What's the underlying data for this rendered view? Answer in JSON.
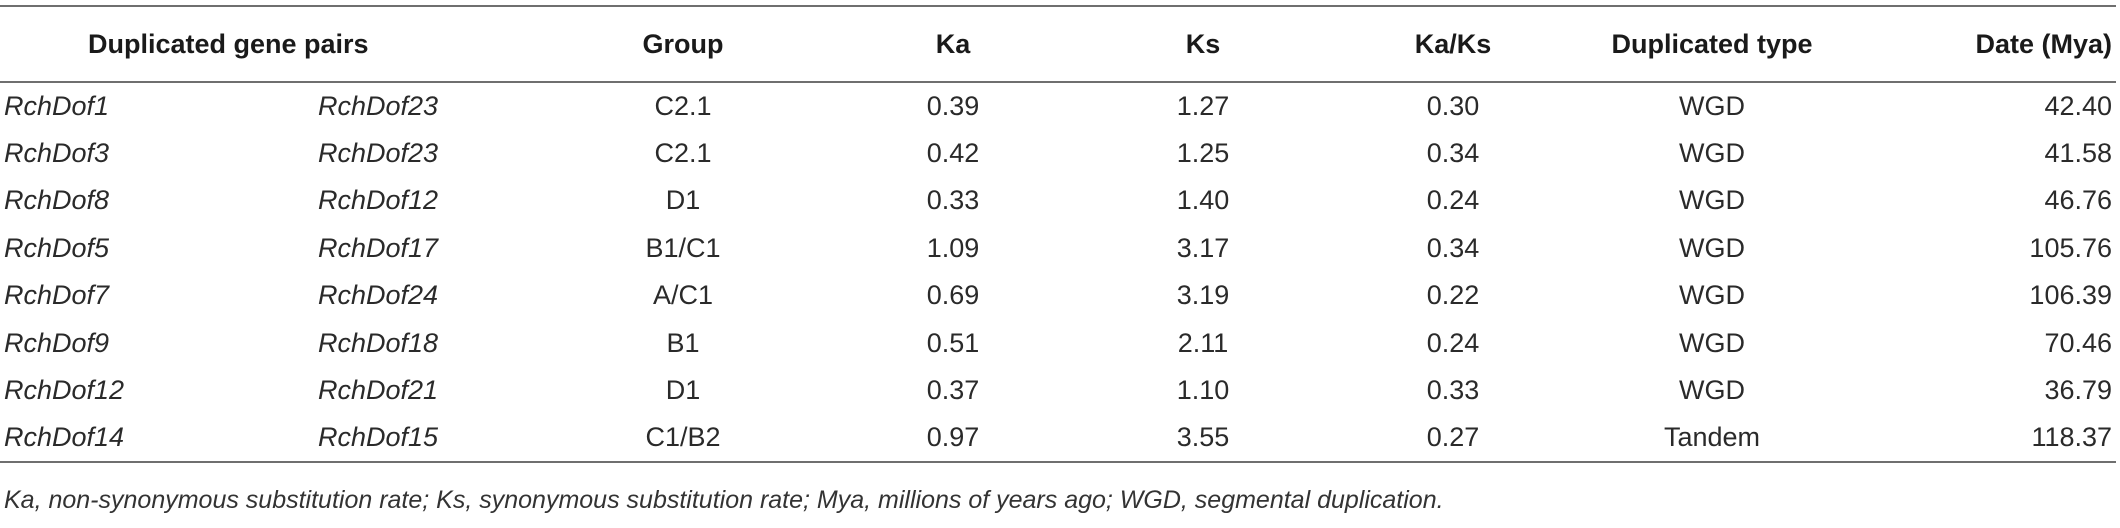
{
  "table": {
    "headers": {
      "pairs": "Duplicated gene pairs",
      "group": "Group",
      "ka": "Ka",
      "ks": "Ks",
      "kaks": "Ka/Ks",
      "type": "Duplicated type",
      "date": "Date (Mya)"
    },
    "rows": [
      {
        "gene1": "RchDof1",
        "gene2": "RchDof23",
        "group": "C2.1",
        "ka": "0.39",
        "ks": "1.27",
        "kaks": "0.30",
        "type": "WGD",
        "date": "42.40"
      },
      {
        "gene1": "RchDof3",
        "gene2": "RchDof23",
        "group": "C2.1",
        "ka": "0.42",
        "ks": "1.25",
        "kaks": "0.34",
        "type": "WGD",
        "date": "41.58"
      },
      {
        "gene1": "RchDof8",
        "gene2": "RchDof12",
        "group": "D1",
        "ka": "0.33",
        "ks": "1.40",
        "kaks": "0.24",
        "type": "WGD",
        "date": "46.76"
      },
      {
        "gene1": "RchDof5",
        "gene2": "RchDof17",
        "group": "B1/C1",
        "ka": "1.09",
        "ks": "3.17",
        "kaks": "0.34",
        "type": "WGD",
        "date": "105.76"
      },
      {
        "gene1": "RchDof7",
        "gene2": "RchDof24",
        "group": "A/C1",
        "ka": "0.69",
        "ks": "3.19",
        "kaks": "0.22",
        "type": "WGD",
        "date": "106.39"
      },
      {
        "gene1": "RchDof9",
        "gene2": "RchDof18",
        "group": "B1",
        "ka": "0.51",
        "ks": "2.11",
        "kaks": "0.24",
        "type": "WGD",
        "date": "70.46"
      },
      {
        "gene1": "RchDof12",
        "gene2": "RchDof21",
        "group": "D1",
        "ka": "0.37",
        "ks": "1.10",
        "kaks": "0.33",
        "type": "WGD",
        "date": "36.79"
      },
      {
        "gene1": "RchDof14",
        "gene2": "RchDof15",
        "group": "C1/B2",
        "ka": "0.97",
        "ks": "3.55",
        "kaks": "0.27",
        "type": "Tandem",
        "date": "118.37"
      }
    ]
  },
  "footnote": "Ka, non-synonymous substitution rate; Ks, synonymous substitution rate; Mya, millions of years ago; WGD, segmental duplication."
}
